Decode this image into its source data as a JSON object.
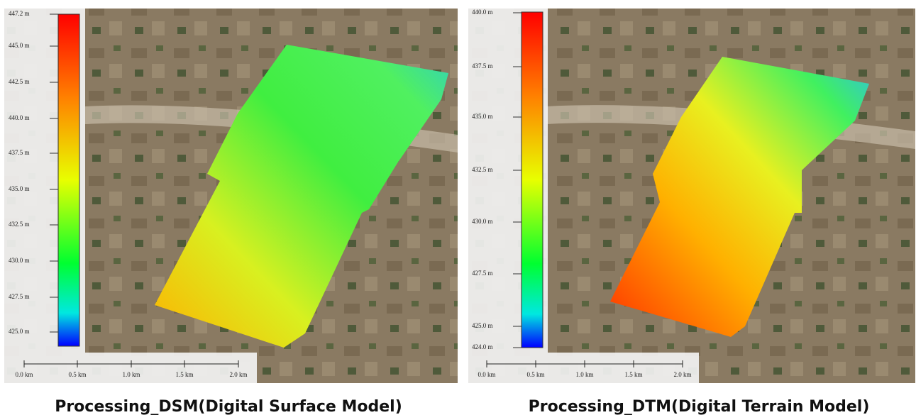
{
  "panels": [
    {
      "legend": [
        "447.2 m",
        "445.0 m",
        "442.5 m",
        "440.0 m",
        "437.5 m",
        "435.0 m",
        "432.5 m",
        "430.0 m",
        "427.5 m",
        "425.0 m"
      ],
      "scale": [
        "0.0 km",
        "0.5 km",
        "1.0 km",
        "1.5 km",
        "2.0 km"
      ],
      "caption": "Processing_DSM(Digital Surface Model)"
    },
    {
      "legend": [
        "440.0 m",
        "437.5 m",
        "435.0 m",
        "432.5 m",
        "430.0 m",
        "427.5 m",
        "425.0 m",
        "424.0 m"
      ],
      "scale": [
        "0.0 km",
        "0.5 km",
        "1.0 km",
        "1.5 km",
        "2.0 km"
      ],
      "caption": "Processing_DTM(Digital Terrain Model)"
    }
  ]
}
